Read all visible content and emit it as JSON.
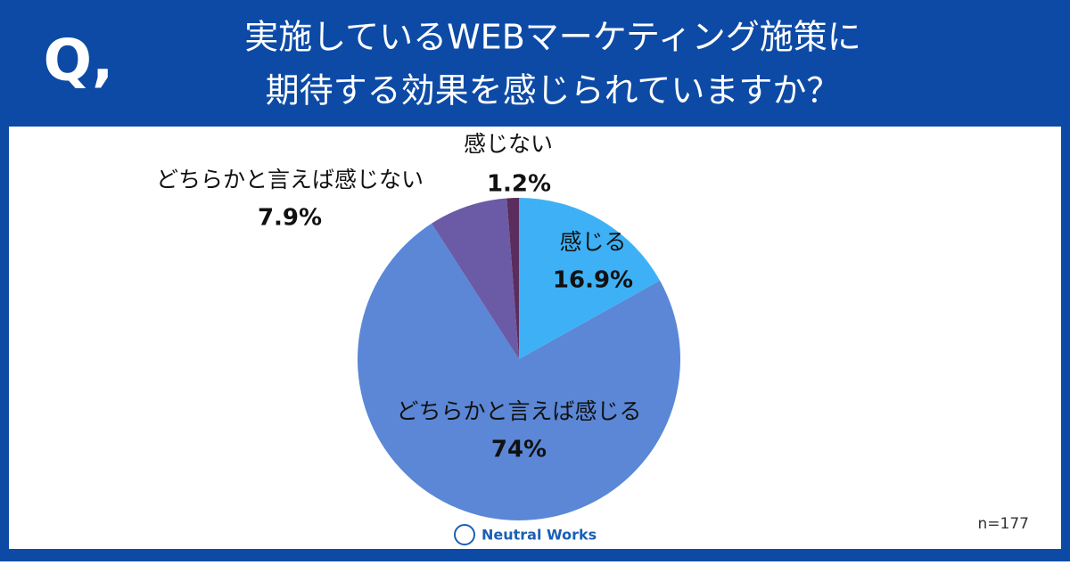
{
  "question_mark": "Q,",
  "title_lines": [
    "実施しているWEBマーケティング施策に",
    "期待する効果を感じられていますか？"
  ],
  "note": "n=177",
  "brand": "Neutral Works",
  "chart_data": {
    "type": "pie",
    "categories": [
      "感じる",
      "どちらかと言えば感じる",
      "どちらかと言えば感じない",
      "感じない"
    ],
    "values": [
      16.9,
      74,
      7.9,
      1.2
    ],
    "value_labels": [
      "16.9%",
      "74%",
      "7.9%",
      "1.2%"
    ],
    "colors": [
      "#3eb1f6",
      "#5b87d6",
      "#6b5aa6",
      "#5a2d5c"
    ]
  }
}
